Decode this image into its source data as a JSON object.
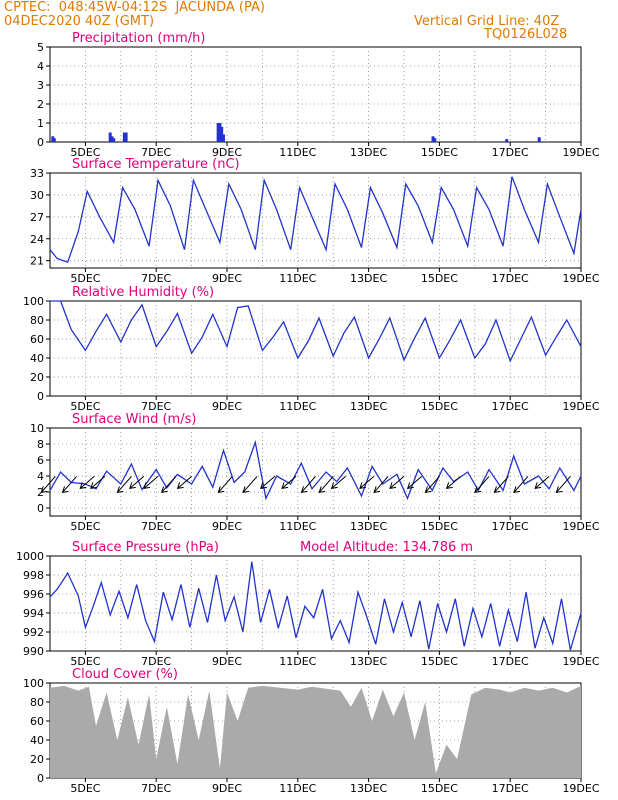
{
  "header": {
    "line1": "CPTEC:  048:45W-04:12S  JACUNDA (PA)",
    "line2": "04DEC2020 40Z (GMT)",
    "right1": "Vertical Grid Line: 40Z",
    "right2": "TQ0126L028"
  },
  "colors": {
    "header": "#e07a00",
    "title": "#e0007a",
    "series": "#2233cc",
    "cloud": "#aaaaaa"
  },
  "x_labels": [
    "5DEC",
    "7DEC",
    "9DEC",
    "11DEC",
    "13DEC",
    "15DEC",
    "17DEC",
    "19DEC"
  ],
  "model_altitude": "Model Altitude: 134.786 m",
  "chart_data": [
    {
      "type": "bar",
      "title": "Precipitation (mm/h)",
      "ylim": [
        0,
        5
      ],
      "yticks": [
        "0",
        "1",
        "2",
        "3",
        "4",
        "5"
      ],
      "x": [
        4.08,
        4.12,
        5.7,
        5.75,
        5.8,
        6.1,
        6.15,
        8.75,
        8.8,
        8.85,
        8.9,
        14.82,
        14.87,
        16.9,
        17.82
      ],
      "values": [
        0.3,
        0.2,
        0.5,
        0.3,
        0.2,
        0.5,
        0.5,
        1.0,
        1.0,
        0.8,
        0.4,
        0.3,
        0.2,
        0.15,
        0.25
      ]
    },
    {
      "type": "line",
      "title": "Surface Temperature (nC)",
      "ylim": [
        20,
        33
      ],
      "yticks": [
        "21",
        "24",
        "27",
        "30",
        "33"
      ],
      "x": [
        4.0,
        4.2,
        4.5,
        4.8,
        5.05,
        5.4,
        5.8,
        6.05,
        6.4,
        6.8,
        7.05,
        7.4,
        7.8,
        8.05,
        8.4,
        8.8,
        9.05,
        9.4,
        9.8,
        10.05,
        10.4,
        10.8,
        11.05,
        11.4,
        11.8,
        12.05,
        12.4,
        12.8,
        13.05,
        13.4,
        13.8,
        14.05,
        14.4,
        14.8,
        15.05,
        15.4,
        15.8,
        16.05,
        16.4,
        16.8,
        17.05,
        17.4,
        17.8,
        18.05,
        18.4,
        18.8,
        19.0
      ],
      "values": [
        22.5,
        21.3,
        20.8,
        25,
        30.5,
        27,
        23.5,
        31,
        28,
        23,
        32,
        28.5,
        22.5,
        32,
        28,
        23.5,
        31.5,
        28,
        22.5,
        32,
        28,
        22.5,
        31,
        27,
        22.5,
        31.5,
        28,
        22.8,
        31,
        27.5,
        22.8,
        31.5,
        28.5,
        23.5,
        31,
        28,
        23,
        31,
        28,
        23,
        32.5,
        28,
        23.5,
        31.5,
        27,
        22,
        28
      ]
    },
    {
      "type": "line",
      "title": "Relative Humidity (%)",
      "ylim": [
        0,
        100
      ],
      "yticks": [
        "0",
        "20",
        "40",
        "60",
        "80",
        "100"
      ],
      "x": [
        4.0,
        4.3,
        4.6,
        5.0,
        5.3,
        5.6,
        6.0,
        6.3,
        6.6,
        7.0,
        7.3,
        7.6,
        8.0,
        8.3,
        8.6,
        9.0,
        9.3,
        9.6,
        10.0,
        10.3,
        10.6,
        11.0,
        11.3,
        11.6,
        12.0,
        12.3,
        12.6,
        13.0,
        13.3,
        13.6,
        14.0,
        14.3,
        14.6,
        15.0,
        15.3,
        15.6,
        16.0,
        16.3,
        16.6,
        17.0,
        17.3,
        17.6,
        18.0,
        18.3,
        18.6,
        19.0
      ],
      "values": [
        100,
        100,
        70,
        48,
        68,
        86,
        57,
        80,
        96,
        52,
        68,
        87,
        45,
        62,
        86,
        52,
        93,
        95,
        48,
        62,
        78,
        40,
        58,
        82,
        42,
        66,
        83,
        40,
        60,
        82,
        38,
        61,
        82,
        40,
        59,
        80,
        40,
        55,
        80,
        37,
        60,
        83,
        43,
        62,
        80,
        52
      ]
    },
    {
      "type": "line",
      "title": "Surface Wind (m/s)",
      "ylim": [
        -1,
        10
      ],
      "yticks": [
        "0",
        "2",
        "4",
        "6",
        "8",
        "10"
      ],
      "x": [
        4.0,
        4.3,
        4.6,
        5.0,
        5.3,
        5.6,
        6.0,
        6.3,
        6.6,
        7.0,
        7.3,
        7.6,
        8.0,
        8.3,
        8.6,
        8.9,
        9.2,
        9.5,
        9.8,
        10.1,
        10.4,
        10.8,
        11.1,
        11.4,
        11.8,
        12.1,
        12.4,
        12.8,
        13.1,
        13.4,
        13.8,
        14.1,
        14.4,
        14.8,
        15.1,
        15.4,
        15.8,
        16.1,
        16.4,
        16.8,
        17.1,
        17.4,
        17.8,
        18.1,
        18.4,
        18.8,
        19.0
      ],
      "values": [
        2.2,
        4.5,
        3.2,
        3.0,
        2.4,
        4.6,
        3.0,
        5.5,
        2.3,
        4.8,
        2.5,
        4.2,
        3.0,
        5.2,
        2.6,
        7.2,
        3.2,
        4.5,
        8.2,
        1.2,
        4.0,
        3.0,
        5.6,
        2.4,
        4.5,
        3.3,
        5.0,
        1.5,
        5.2,
        3.0,
        4.2,
        1.2,
        4.8,
        2.2,
        5.0,
        3.3,
        4.5,
        2.2,
        4.8,
        2.2,
        6.5,
        3.0,
        4.0,
        2.4,
        5.0,
        2.2,
        4.0
      ],
      "arrows": [
        {
          "x": 4.15,
          "dir": 225
        },
        {
          "x": 4.75,
          "dir": 225
        },
        {
          "x": 5.25,
          "dir": 215
        },
        {
          "x": 5.55,
          "dir": 200
        },
        {
          "x": 6.3,
          "dir": 230
        },
        {
          "x": 6.65,
          "dir": 220
        },
        {
          "x": 7.05,
          "dir": 205
        },
        {
          "x": 7.55,
          "dir": 230
        },
        {
          "x": 8.0,
          "dir": 215
        },
        {
          "x": 9.15,
          "dir": 225
        },
        {
          "x": 9.85,
          "dir": 240
        },
        {
          "x": 10.35,
          "dir": 205
        },
        {
          "x": 10.95,
          "dir": 220
        },
        {
          "x": 11.5,
          "dir": 235
        },
        {
          "x": 12.0,
          "dir": 225
        },
        {
          "x": 12.35,
          "dir": 215
        },
        {
          "x": 13.15,
          "dir": 210
        },
        {
          "x": 13.55,
          "dir": 225
        },
        {
          "x": 14.0,
          "dir": 210
        },
        {
          "x": 14.5,
          "dir": 215
        },
        {
          "x": 15.0,
          "dir": 230
        },
        {
          "x": 15.6,
          "dir": 220
        },
        {
          "x": 16.4,
          "dir": 230
        },
        {
          "x": 16.95,
          "dir": 225
        },
        {
          "x": 17.5,
          "dir": 235
        },
        {
          "x": 18.1,
          "dir": 215
        },
        {
          "x": 18.7,
          "dir": 225
        }
      ]
    },
    {
      "type": "line",
      "title": "Surface Pressure (hPa)",
      "ylim": [
        990,
        1000
      ],
      "yticks": [
        "990",
        "992",
        "994",
        "996",
        "998",
        "1000"
      ],
      "x": [
        4.0,
        4.2,
        4.5,
        4.8,
        5.0,
        5.2,
        5.45,
        5.7,
        5.95,
        6.2,
        6.45,
        6.7,
        6.95,
        7.2,
        7.45,
        7.7,
        7.95,
        8.2,
        8.45,
        8.7,
        8.95,
        9.2,
        9.45,
        9.7,
        9.95,
        10.2,
        10.45,
        10.7,
        10.95,
        11.2,
        11.45,
        11.7,
        11.95,
        12.2,
        12.45,
        12.7,
        12.95,
        13.2,
        13.45,
        13.7,
        13.95,
        14.2,
        14.45,
        14.7,
        14.95,
        15.2,
        15.45,
        15.7,
        15.95,
        16.2,
        16.45,
        16.7,
        16.95,
        17.2,
        17.45,
        17.7,
        17.95,
        18.2,
        18.45,
        18.7,
        19.0
      ],
      "values": [
        995.7,
        996.5,
        998.2,
        995.8,
        992.5,
        994.5,
        997.2,
        993.8,
        996.3,
        993.5,
        997.0,
        993.2,
        991.0,
        996.2,
        993.3,
        997.0,
        992.5,
        996.6,
        993.0,
        998.0,
        993.2,
        995.7,
        992.0,
        999.4,
        993.0,
        996.5,
        992.4,
        995.8,
        991.4,
        994.7,
        993.5,
        996.5,
        991.3,
        993.2,
        990.9,
        996.2,
        993.6,
        990.7,
        995.5,
        992.0,
        995.1,
        991.5,
        995.3,
        990.2,
        995.0,
        992.0,
        995.5,
        990.5,
        994.5,
        991.5,
        995.0,
        990.5,
        994.3,
        991.0,
        996.2,
        990.3,
        993.5,
        990.8,
        995.5,
        990.1,
        994.0
      ]
    },
    {
      "type": "area",
      "title": "Cloud Cover (%)",
      "ylim": [
        0,
        100
      ],
      "yticks": [
        "0",
        "20",
        "40",
        "60",
        "80",
        "100"
      ],
      "x": [
        4.0,
        4.4,
        4.8,
        5.1,
        5.3,
        5.6,
        5.9,
        6.2,
        6.5,
        6.8,
        7.0,
        7.3,
        7.6,
        7.9,
        8.2,
        8.5,
        8.8,
        9.0,
        9.3,
        9.6,
        10.0,
        10.5,
        11.0,
        11.4,
        11.8,
        12.2,
        12.5,
        12.8,
        13.1,
        13.4,
        13.7,
        14.0,
        14.3,
        14.6,
        14.9,
        15.2,
        15.5,
        15.9,
        16.3,
        16.7,
        17.0,
        17.4,
        17.8,
        18.2,
        18.6,
        19.0
      ],
      "values": [
        95,
        97,
        92,
        96,
        55,
        90,
        40,
        85,
        35,
        88,
        20,
        75,
        15,
        88,
        40,
        92,
        10,
        90,
        60,
        95,
        97,
        95,
        93,
        96,
        94,
        92,
        75,
        95,
        60,
        93,
        65,
        90,
        40,
        80,
        5,
        35,
        20,
        88,
        95,
        93,
        90,
        95,
        92,
        95,
        90,
        97
      ]
    }
  ]
}
